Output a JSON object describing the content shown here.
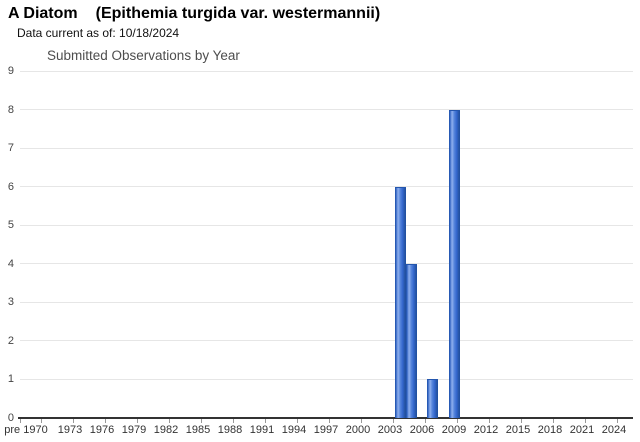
{
  "header": {
    "title_main": "A Diatom",
    "title_paren": "(Epithemia turgida var. westermannii)",
    "subtitle": "Data current as of: 10/18/2024"
  },
  "chart_data": {
    "type": "bar",
    "title": "Submitted Observations by Year",
    "xlabel": "",
    "ylabel": "",
    "ylim": [
      0,
      9
    ],
    "y_ticks": [
      0,
      1,
      2,
      3,
      4,
      5,
      6,
      7,
      8,
      9
    ],
    "x_tick_labels": [
      "pre 1970",
      "1973",
      "1976",
      "1979",
      "1982",
      "1985",
      "1988",
      "1991",
      "1994",
      "1997",
      "2000",
      "2003",
      "2006",
      "2009",
      "2012",
      "2015",
      "2018",
      "2021",
      "2024"
    ],
    "x_tick_years": [
      1970,
      1973,
      1976,
      1979,
      1982,
      1985,
      1988,
      1991,
      1994,
      1997,
      2000,
      2003,
      2006,
      2009,
      2012,
      2015,
      2018,
      2021,
      2024
    ],
    "grid": "horizontal",
    "legend_position": "none",
    "bars": [
      {
        "year": 2004,
        "value": 6
      },
      {
        "year": 2005,
        "value": 4
      },
      {
        "year": 2007,
        "value": 1
      },
      {
        "year": 2009,
        "value": 8
      }
    ],
    "bar_color": "#3366cc",
    "bar_highlight_color": "#8fb0ee",
    "bar_edge_color": "#1d4fa5",
    "gridline_color": "#e6e6e6",
    "axis_line_color": "#333333"
  }
}
